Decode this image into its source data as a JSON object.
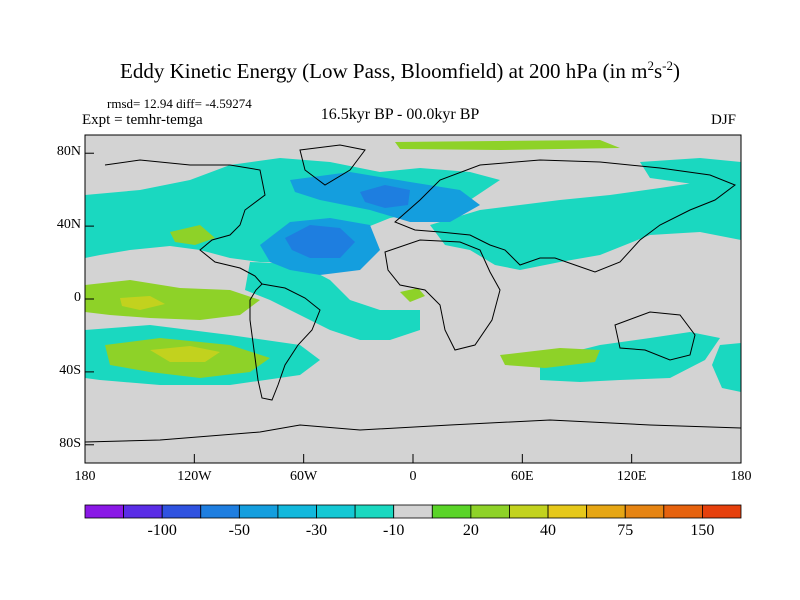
{
  "title": {
    "main": "Eddy Kinetic Energy (Low Pass, Bloomfield) at 200 hPa (in m",
    "sup1": "2",
    "mid": "s",
    "sup2": "-2",
    "end": ")"
  },
  "stats": "rmsd= 12.94 diff= -4.59274",
  "experiment": "Expt = temhr-temga",
  "period": "16.5kyr BP - 00.0kyr BP",
  "season": "DJF",
  "axes": {
    "y_ticks": [
      {
        "value": 80,
        "label": "80N"
      },
      {
        "value": 40,
        "label": "40N"
      },
      {
        "value": 0,
        "label": "0"
      },
      {
        "value": -40,
        "label": "40S"
      },
      {
        "value": -80,
        "label": "80S"
      }
    ],
    "x_ticks": [
      {
        "value": -180,
        "label": "180"
      },
      {
        "value": -120,
        "label": "120W"
      },
      {
        "value": -60,
        "label": "60W"
      },
      {
        "value": 0,
        "label": "0"
      },
      {
        "value": 60,
        "label": "60E"
      },
      {
        "value": 120,
        "label": "120E"
      },
      {
        "value": 180,
        "label": "180"
      }
    ]
  },
  "colorbar": {
    "colors": [
      "#8a18e6",
      "#5a2de6",
      "#2f52e0",
      "#1e7ee0",
      "#149ede",
      "#12b8dc",
      "#14c8d4",
      "#1ad8c0",
      "#d3d3d3",
      "#5ad428",
      "#8ed228",
      "#c2d21e",
      "#e6c81a",
      "#e6a614",
      "#e68412",
      "#e6620e",
      "#e6400c"
    ],
    "labels": [
      "-100",
      "-50",
      "-30",
      "-10",
      "20",
      "40",
      "75",
      "150"
    ]
  },
  "chart_data": {
    "type": "contour_map",
    "title": "Eddy Kinetic Energy (Low Pass, Bloomfield) at 200 hPa (in m^2 s^-2)",
    "units": "m^2 s^-2",
    "xlim": [
      -180,
      180
    ],
    "ylim": [
      -90,
      90
    ],
    "background_value_class": "-10 to 20",
    "regions": [
      {
        "class": "-10 to -30",
        "color": "#1ad8c0",
        "lon": [
          -110,
          10
        ],
        "lat": [
          10,
          75
        ],
        "note": "broad North Atlantic / North American band"
      },
      {
        "class": "-50 to -100",
        "color": "#2f52e0",
        "lon": [
          -70,
          -40
        ],
        "lat": [
          28,
          40
        ],
        "note": "Western Atlantic minimum"
      },
      {
        "class": "-30 to -50",
        "color": "#1e7ee0",
        "lon": [
          -20,
          0
        ],
        "lat": [
          48,
          56
        ],
        "note": "North Atlantic / Europe minimum"
      },
      {
        "class": "-10 to -30",
        "color": "#1ad8c0",
        "lon": [
          15,
          145
        ],
        "lat": [
          25,
          42
        ],
        "note": "Eurasian subtropical jet band"
      },
      {
        "class": "-10 to -30",
        "color": "#1ad8c0",
        "lon": [
          -40,
          -10
        ],
        "lat": [
          -40,
          10
        ],
        "note": "South Atlantic tongue"
      },
      {
        "class": "20 to 40",
        "color": "#8ed228",
        "lon": [
          -180,
          -90
        ],
        "lat": [
          -8,
          6
        ],
        "note": "Equatorial Pacific positive band"
      },
      {
        "class": "40 to 75",
        "color": "#c2d21e",
        "lon": [
          -150,
          -110
        ],
        "lat": [
          -38,
          -30
        ],
        "note": "South Pacific positive maximum"
      },
      {
        "class": "-10 to -30",
        "color": "#1ad8c0",
        "lon": [
          -5,
          120
        ],
        "lat": [
          -45,
          -30
        ],
        "note": "Southern Ocean band"
      }
    ]
  }
}
